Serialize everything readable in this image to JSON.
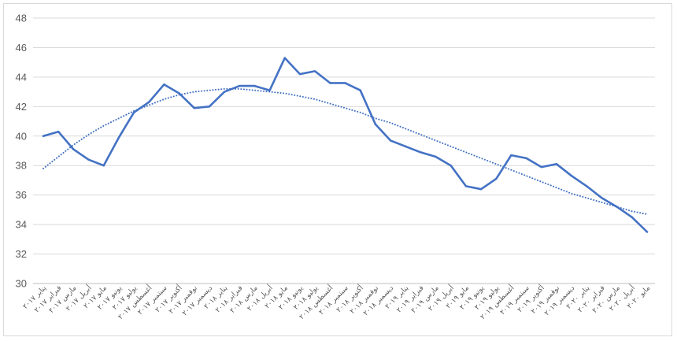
{
  "chart_data": {
    "type": "line",
    "title": "",
    "xlabel": "",
    "ylabel": "",
    "ylim": [
      30,
      48
    ],
    "yticks": [
      30,
      32,
      34,
      36,
      38,
      40,
      42,
      44,
      46,
      48
    ],
    "grid": true,
    "legend": "none",
    "categories": [
      "يناير ٢٠١٧",
      "فبراير ٢٠١٧",
      "مارس ٢٠١٧",
      "أبريل ٢٠١٧",
      "مايو ٢٠١٧",
      "يونيو ٢٠١٧",
      "يوليو ٢٠١٧",
      "أغسطس ٢٠١٧",
      "سبتمبر ٢٠١٧",
      "أكتوبر ٢٠١٧",
      "نوفمبر ٢٠١٧",
      "ديسمبر ٢٠١٧",
      "يناير ٢٠١٨",
      "فبراير ٢٠١٨",
      "مارس ٢٠١٨",
      "أبريل ٢٠١٨",
      "مايو ٢٠١٨",
      "يونيو ٢٠١٨",
      "يوليو ٢٠١٨",
      "أغسطس ٢٠١٨",
      "سبتمبر ٢٠١٨",
      "أكتوبر ٢٠١٨",
      "نوفمبر ٢٠١٨",
      "ديسمبر ٢٠١٨",
      "يناير ٢٠١٩",
      "فبراير ٢٠١٩",
      "مارس ٢٠١٩",
      "أبريل ٢٠١٩",
      "مايو ٢٠١٩",
      "يونيو ٢٠١٩",
      "يوليو ٢٠١٩",
      "أغسطس ٢٠١٩",
      "سبتمبر ٢٠١٩",
      "أكتوبر ٢٠١٩",
      "نوفمبر ٢٠١٩",
      "ديسمبر ٢٠١٩",
      "يناير ٢٠٢٠",
      "فبراير ٢٠٢٠",
      "مارس ٢٠٢٠",
      "أبريل ٢٠٢٠",
      "مايو ٢٠٢٠"
    ],
    "series": [
      {
        "color": "#4472c4",
        "style": "solid",
        "values": [
          40.0,
          40.3,
          39.1,
          38.4,
          38.0,
          39.9,
          41.6,
          42.3,
          43.5,
          42.9,
          41.9,
          42.0,
          43.0,
          43.4,
          43.4,
          43.1,
          45.3,
          44.2,
          44.4,
          43.6,
          43.6,
          43.1,
          40.8,
          39.7,
          39.3,
          38.9,
          38.6,
          38.0,
          36.6,
          36.4,
          37.1,
          38.7,
          38.5,
          37.9,
          38.1,
          37.3,
          36.6,
          35.8,
          35.2,
          34.5,
          33.5
        ]
      },
      {
        "color": "#4472c4",
        "style": "dotted",
        "values": [
          37.8,
          38.6,
          39.4,
          40.1,
          40.7,
          41.2,
          41.7,
          42.1,
          42.5,
          42.8,
          43.0,
          43.1,
          43.2,
          43.2,
          43.1,
          43.0,
          42.9,
          42.7,
          42.5,
          42.2,
          41.9,
          41.6,
          41.2,
          40.9,
          40.5,
          40.1,
          39.7,
          39.3,
          38.9,
          38.5,
          38.1,
          37.7,
          37.3,
          36.9,
          36.5,
          36.1,
          35.8,
          35.5,
          35.2,
          34.9,
          34.7
        ]
      }
    ]
  }
}
